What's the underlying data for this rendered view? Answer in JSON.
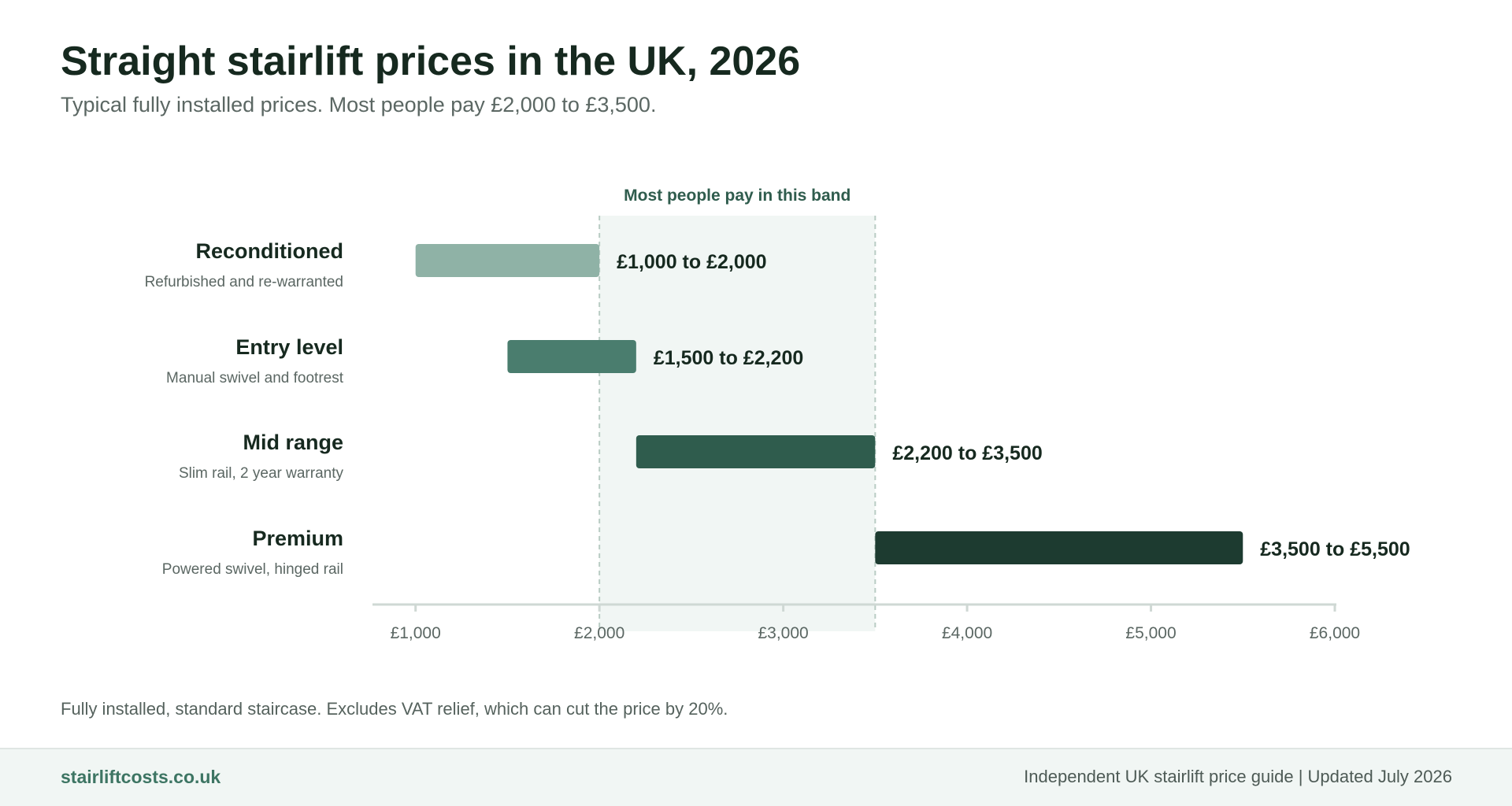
{
  "title": "Straight stairlift prices in the UK, 2026",
  "subtitle": "Typical fully installed prices. Most people pay £2,000 to £3,500.",
  "note": "Fully installed, standard staircase. Excludes VAT relief, which can cut the price by 20%.",
  "footer": {
    "brand": "stairliftcosts.co.uk",
    "meta": "Independent UK stairlift price guide | Updated July 2026"
  },
  "chart_data": {
    "type": "bar",
    "orientation": "horizontal-range",
    "title": "Straight stairlift prices in the UK, 2026",
    "subtitle": "Typical fully installed prices. Most people pay £2,000 to £3,500.",
    "xlabel": "",
    "ylabel": "",
    "xlim": [
      800,
      6000
    ],
    "x_ticks": [
      1000,
      2000,
      3000,
      4000,
      5000,
      6000
    ],
    "x_tick_labels": [
      "£1,000",
      "£2,000",
      "£3,000",
      "£4,000",
      "£5,000",
      "£6,000"
    ],
    "grid": false,
    "highlight_band": {
      "from": 2000,
      "to": 3500,
      "label": "Most people pay in this band",
      "color": "#f1f6f4",
      "line_color": "#b9ccc4"
    },
    "categories": [
      {
        "name": "Reconditioned",
        "description": "Refurbished and re-warranted",
        "low": 1000,
        "high": 2000,
        "label": "£1,000 to £2,000",
        "color": "#8fb2a6"
      },
      {
        "name": "Entry level",
        "description": "Manual swivel and footrest",
        "low": 1500,
        "high": 2200,
        "label": "£1,500 to £2,200",
        "color": "#4a7d6e"
      },
      {
        "name": "Mid range",
        "description": "Slim rail, 2 year warranty",
        "low": 2200,
        "high": 3500,
        "label": "£2,200 to £3,500",
        "color": "#2f5c4d"
      },
      {
        "name": "Premium",
        "description": "Powered swivel, hinged rail",
        "low": 3500,
        "high": 5500,
        "label": "£3,500 to £5,500",
        "color": "#1d3b30"
      }
    ]
  }
}
